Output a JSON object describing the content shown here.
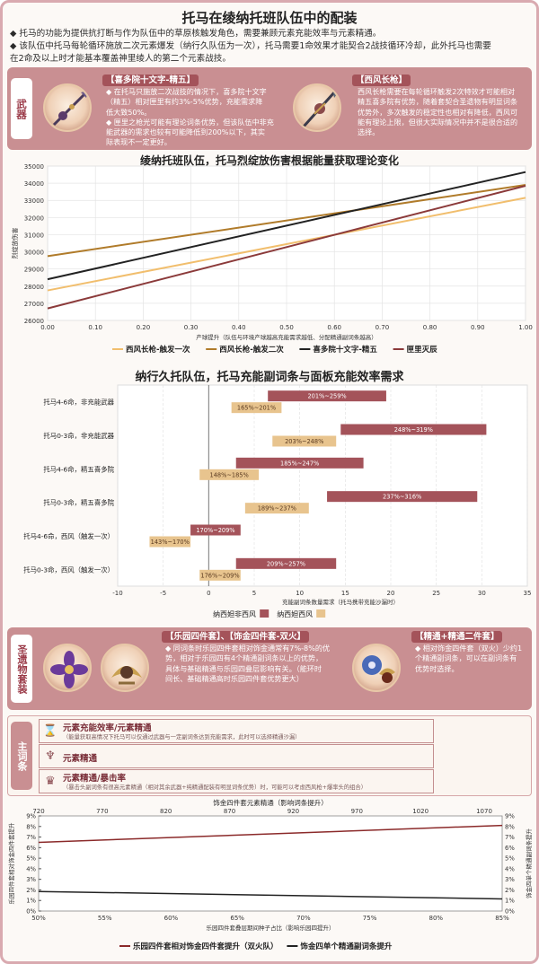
{
  "page": {
    "title": "托马在绫纳托班队伍中的配装",
    "intro": [
      "◆ 托马的功能为提供抗打断与作为队伍中的草原核触发角色，需要兼顾元素充能效率与元素精通。",
      "◆ 该队伍中托马每轮循环施放二次元素爆发（纳行久队伍为一次），托马需要1命效果才能契合2战技循环冷却，此外托马也需要",
      "   在2命及以上时才能基本覆盖神里绫人的第二个元素战技。"
    ]
  },
  "weapons": {
    "label": "武器",
    "items": [
      {
        "name": "【喜多院十文字-精五】",
        "lines": [
          "◆ 在托马只施放二次战技的情况下，喜多院十文字",
          "（精五）相对匣里有约3%-5%优势，充能需求降",
          "低大致50%。",
          "◆ 匣里之枪光可能有理论词条优势，但该队伍中非充",
          "能武器的需求也较有可能降低到200%以下，其实",
          "际表现不一定更好。"
        ]
      },
      {
        "name": "【西风长枪】",
        "lines": [
          "西风长枪需要在每轮循环触发2次特效才可能相对",
          "精五喜多院有优势，随着套契合圣遗物有明显词条",
          "优势外，多次触发的稳定性也相对有降低，西风可",
          "能有理论上限，但很大实际情况中并不是很合适的",
          "选择。"
        ]
      }
    ]
  },
  "line_chart": {
    "chart_data": {
      "type": "line",
      "title": "绫纳托班队伍，托马烈绽放伤害根据能量获取理论变化",
      "xlabel": "产球提升（队伍与环境产球越高充能需求越低、分配精通副词条越高）",
      "ylabel": "烈绽放伤害",
      "xlim": [
        0,
        1
      ],
      "ylim": [
        26000,
        35000
      ],
      "xticks": [
        "0.00",
        "0.10",
        "0.20",
        "0.30",
        "0.40",
        "0.50",
        "0.60",
        "0.70",
        "0.80",
        "0.90",
        "1.00"
      ],
      "yticks": [
        "26000",
        "27000",
        "28000",
        "29000",
        "30000",
        "31000",
        "32000",
        "33000",
        "34000",
        "35000"
      ],
      "series": [
        {
          "name": "西风长枪-触发一次",
          "color": "#f1be6d",
          "x": [
            0,
            1
          ],
          "y": [
            27750,
            33150
          ]
        },
        {
          "name": "西风长枪-触发二次",
          "color": "#b07b2a",
          "x": [
            0,
            1
          ],
          "y": [
            29750,
            33900
          ]
        },
        {
          "name": "喜多院十文字-精五",
          "color": "#222222",
          "x": [
            0,
            1
          ],
          "y": [
            28400,
            34650
          ]
        },
        {
          "name": "匣里灭辰",
          "color": "#8b3a3a",
          "x": [
            0,
            1
          ],
          "y": [
            26700,
            33850
          ]
        }
      ]
    }
  },
  "bar_chart": {
    "chart_data": {
      "type": "bar",
      "title": "纳行久托队伍，托马充能副词条与面板充能效率需求",
      "xlabel": "充能副词条数量需求（托马携带充能沙漏时）",
      "xlim": [
        -10,
        35
      ],
      "xticks": [
        "-10",
        "-5",
        "0",
        "5",
        "10",
        "15",
        "20",
        "25",
        "30",
        "35"
      ],
      "categories": [
        "托马4-6命，非充能武器",
        "托马0-3命，非充能武器",
        "托马4-6命，精五喜多院",
        "托马0-3命，精五喜多院",
        "托马4-6命，西风（触发一次）",
        "托马0-3命，西风（触发一次）"
      ],
      "series": [
        {
          "name": "纳西妲非西风",
          "color": "#a4535a",
          "ranges": [
            [
              6.5,
              19.5
            ],
            [
              14.5,
              30.5
            ],
            [
              3,
              17
            ],
            [
              13,
              29.5
            ],
            [
              -2,
              3.5
            ],
            [
              3,
              14
            ]
          ],
          "labels": [
            "201%~259%",
            "248%~319%",
            "185%~247%",
            "237%~316%",
            "170%~209%",
            "209%~257%"
          ]
        },
        {
          "name": "纳西妲西风",
          "color": "#e8c48e",
          "ranges": [
            [
              2.5,
              8
            ],
            [
              7,
              14
            ],
            [
              -1,
              5.5
            ],
            [
              4,
              11
            ],
            [
              -6.5,
              -2
            ],
            [
              -1,
              3.5
            ]
          ],
          "labels": [
            "165%~201%",
            "203%~248%",
            "148%~185%",
            "189%~237%",
            "143%~170%",
            "176%~209%"
          ]
        }
      ]
    }
  },
  "artifacts": {
    "label": "圣遗物套装",
    "items": [
      {
        "name": "【乐园四件套】、【饰金四件套-双火】",
        "lines": [
          "◆ 同词条时乐园四件套相对饰金通常有7%-8%的优",
          "势，相对于乐园四有4个精通副词条以上的优势，",
          "具体与基础精通与乐园四叠层影响有关。（能环时",
          "间长、基础精通高时乐园四件套优势更大）"
        ]
      },
      {
        "name": "【精通+精通二件套】",
        "lines": [
          "◆ 相对饰金四件套（双火）少约1",
          "个精通副词条，可以在副词条有",
          "优势时选择。"
        ]
      }
    ]
  },
  "stats": {
    "label": "主词条",
    "rows": [
      {
        "icon": "hourglass-icon",
        "glyph": "⌛",
        "main": "元素充能效率/元素精通",
        "sub": "（能量获取高情况下托马可以仅通过武器与一定副词条达到充能需求，此时可以选择精通沙漏）"
      },
      {
        "icon": "goblet-icon",
        "glyph": "♆",
        "main": "元素精通",
        "sub": ""
      },
      {
        "icon": "crown-icon",
        "glyph": "♛",
        "main": "元素精通/暴击率",
        "sub": "（暴击头副词条有很高元素精通（相对其余武器+纯精通配装有明显词条优势）时，可能可以考虑西风枪+爆率头的组合）"
      }
    ]
  },
  "dual_chart": {
    "chart_data": {
      "type": "line",
      "title": "饰金四件套元素精通（影响词条提升）",
      "top_xticks": [
        "720",
        "770",
        "820",
        "870",
        "920",
        "970",
        "1020",
        "1070"
      ],
      "xlabel": "乐园四件套叠层期间种子占比（影响乐园四提升）",
      "xticks": [
        "50%",
        "55%",
        "60%",
        "65%",
        "70%",
        "75%",
        "80%",
        "85%"
      ],
      "xlim": [
        0.5,
        0.85
      ],
      "ylabel_left": "乐园四件套相对饰金四件套提升",
      "ylabel_right": "饰金四单个精通副词条提升",
      "ylim": [
        0,
        9
      ],
      "yticks": [
        "0%",
        "1%",
        "2%",
        "3%",
        "4%",
        "5%",
        "6%",
        "7%",
        "8%",
        "9%"
      ],
      "series": [
        {
          "name": "乐园四件套相对饰金四件套提升（双火队）",
          "color": "#8b2a2a",
          "x": [
            0.5,
            0.85
          ],
          "y": [
            6.5,
            8.1
          ]
        },
        {
          "name": "饰金四单个精通副词条提升",
          "color": "#222222",
          "x": [
            0.5,
            0.85
          ],
          "y": [
            1.85,
            1.15
          ]
        }
      ]
    }
  }
}
